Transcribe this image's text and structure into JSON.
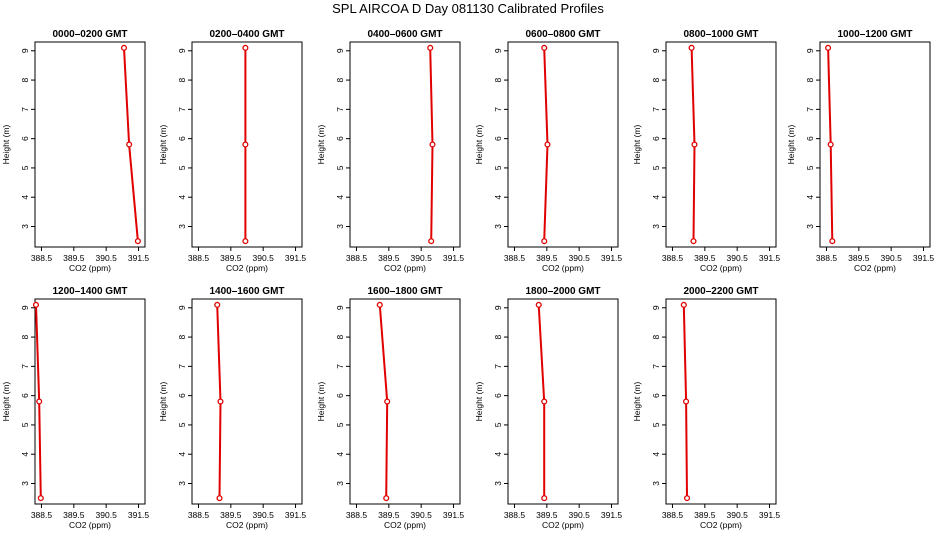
{
  "title": "SPL AIRCOA D  Day 081130  Calibrated Profiles",
  "line_color": "#e00000",
  "chart_data": [
    {
      "type": "line",
      "title": "0000–0200 GMT",
      "xlabel": "CO2 (ppm)",
      "ylabel": "Height (m)",
      "xlim": [
        388.3,
        391.7
      ],
      "ylim": [
        2.3,
        9.3
      ],
      "x_ticks": [
        "388.5",
        "389.5",
        "390.5",
        "391.5"
      ],
      "y_ticks": [
        "3",
        "4",
        "5",
        "6",
        "7",
        "8",
        "9"
      ],
      "series": [
        {
          "x": [
            391.48,
            391.21,
            391.05
          ],
          "y": [
            2.5,
            5.8,
            9.1
          ]
        }
      ]
    },
    {
      "type": "line",
      "title": "0200–0400 GMT",
      "xlabel": "CO2 (ppm)",
      "ylabel": "Height (m)",
      "xlim": [
        388.3,
        391.7
      ],
      "ylim": [
        2.3,
        9.3
      ],
      "x_ticks": [
        "388.5",
        "389.5",
        "390.5",
        "391.5"
      ],
      "y_ticks": [
        "3",
        "4",
        "5",
        "6",
        "7",
        "8",
        "9"
      ],
      "series": [
        {
          "x": [
            389.95,
            389.95,
            389.95
          ],
          "y": [
            2.5,
            5.8,
            9.1
          ]
        }
      ]
    },
    {
      "type": "line",
      "title": "0400–0600 GMT",
      "xlabel": "CO2 (ppm)",
      "ylabel": "Height (m)",
      "xlim": [
        388.3,
        391.7
      ],
      "ylim": [
        2.3,
        9.3
      ],
      "x_ticks": [
        "388.5",
        "389.5",
        "390.5",
        "391.5"
      ],
      "y_ticks": [
        "3",
        "4",
        "5",
        "6",
        "7",
        "8",
        "9"
      ],
      "series": [
        {
          "x": [
            390.81,
            390.85,
            390.78
          ],
          "y": [
            2.5,
            5.8,
            9.1
          ]
        }
      ]
    },
    {
      "type": "line",
      "title": "0600–0800 GMT",
      "xlabel": "CO2 (ppm)",
      "ylabel": "Height (m)",
      "xlim": [
        388.3,
        391.7
      ],
      "ylim": [
        2.3,
        9.3
      ],
      "x_ticks": [
        "388.5",
        "389.5",
        "390.5",
        "391.5"
      ],
      "y_ticks": [
        "3",
        "4",
        "5",
        "6",
        "7",
        "8",
        "9"
      ],
      "series": [
        {
          "x": [
            389.42,
            389.52,
            389.42
          ],
          "y": [
            2.5,
            5.8,
            9.1
          ]
        }
      ]
    },
    {
      "type": "line",
      "title": "0800–1000 GMT",
      "xlabel": "CO2 (ppm)",
      "ylabel": "Height (m)",
      "xlim": [
        388.3,
        391.7
      ],
      "ylim": [
        2.3,
        9.3
      ],
      "x_ticks": [
        "388.5",
        "389.5",
        "390.5",
        "391.5"
      ],
      "y_ticks": [
        "3",
        "4",
        "5",
        "6",
        "7",
        "8",
        "9"
      ],
      "series": [
        {
          "x": [
            389.15,
            389.18,
            389.09
          ],
          "y": [
            2.5,
            5.8,
            9.1
          ]
        }
      ]
    },
    {
      "type": "line",
      "title": "1000–1200 GMT",
      "xlabel": "CO2 (ppm)",
      "ylabel": "Height (m)",
      "xlim": [
        388.3,
        391.7
      ],
      "ylim": [
        2.3,
        9.3
      ],
      "x_ticks": [
        "388.5",
        "389.5",
        "390.5",
        "391.5"
      ],
      "y_ticks": [
        "3",
        "4",
        "5",
        "6",
        "7",
        "8",
        "9"
      ],
      "series": [
        {
          "x": [
            388.68,
            388.63,
            388.55
          ],
          "y": [
            2.5,
            5.8,
            9.1
          ]
        }
      ]
    },
    {
      "type": "line",
      "title": "1200–1400 GMT",
      "xlabel": "CO2 (ppm)",
      "ylabel": "Height (m)",
      "xlim": [
        388.3,
        391.7
      ],
      "ylim": [
        2.3,
        9.3
      ],
      "x_ticks": [
        "388.5",
        "389.5",
        "390.5",
        "391.5"
      ],
      "y_ticks": [
        "3",
        "4",
        "5",
        "6",
        "7",
        "8",
        "9"
      ],
      "series": [
        {
          "x": [
            388.48,
            388.43,
            388.33
          ],
          "y": [
            2.5,
            5.8,
            9.1
          ]
        }
      ]
    },
    {
      "type": "line",
      "title": "1400–1600 GMT",
      "xlabel": "CO2 (ppm)",
      "ylabel": "Height (m)",
      "xlim": [
        388.3,
        391.7
      ],
      "ylim": [
        2.3,
        9.3
      ],
      "x_ticks": [
        "388.5",
        "389.5",
        "390.5",
        "391.5"
      ],
      "y_ticks": [
        "3",
        "4",
        "5",
        "6",
        "7",
        "8",
        "9"
      ],
      "series": [
        {
          "x": [
            389.15,
            389.18,
            389.08
          ],
          "y": [
            2.5,
            5.8,
            9.1
          ]
        }
      ]
    },
    {
      "type": "line",
      "title": "1600–1800 GMT",
      "xlabel": "CO2 (ppm)",
      "ylabel": "Height (m)",
      "xlim": [
        388.3,
        391.7
      ],
      "ylim": [
        2.3,
        9.3
      ],
      "x_ticks": [
        "388.5",
        "389.5",
        "390.5",
        "391.5"
      ],
      "y_ticks": [
        "3",
        "4",
        "5",
        "6",
        "7",
        "8",
        "9"
      ],
      "series": [
        {
          "x": [
            389.42,
            389.45,
            389.22
          ],
          "y": [
            2.5,
            5.8,
            9.1
          ]
        }
      ]
    },
    {
      "type": "line",
      "title": "1800–2000 GMT",
      "xlabel": "CO2 (ppm)",
      "ylabel": "Height (m)",
      "xlim": [
        388.3,
        391.7
      ],
      "ylim": [
        2.3,
        9.3
      ],
      "x_ticks": [
        "388.5",
        "389.5",
        "390.5",
        "391.5"
      ],
      "y_ticks": [
        "3",
        "4",
        "5",
        "6",
        "7",
        "8",
        "9"
      ],
      "series": [
        {
          "x": [
            389.42,
            389.42,
            389.25
          ],
          "y": [
            2.5,
            5.8,
            9.1
          ]
        }
      ]
    },
    {
      "type": "line",
      "title": "2000–2200 GMT",
      "xlabel": "CO2 (ppm)",
      "ylabel": "Height (m)",
      "xlim": [
        388.3,
        391.7
      ],
      "ylim": [
        2.3,
        9.3
      ],
      "x_ticks": [
        "388.5",
        "389.5",
        "390.5",
        "391.5"
      ],
      "y_ticks": [
        "3",
        "4",
        "5",
        "6",
        "7",
        "8",
        "9"
      ],
      "series": [
        {
          "x": [
            388.95,
            388.92,
            388.85
          ],
          "y": [
            2.5,
            5.8,
            9.1
          ]
        }
      ]
    }
  ]
}
